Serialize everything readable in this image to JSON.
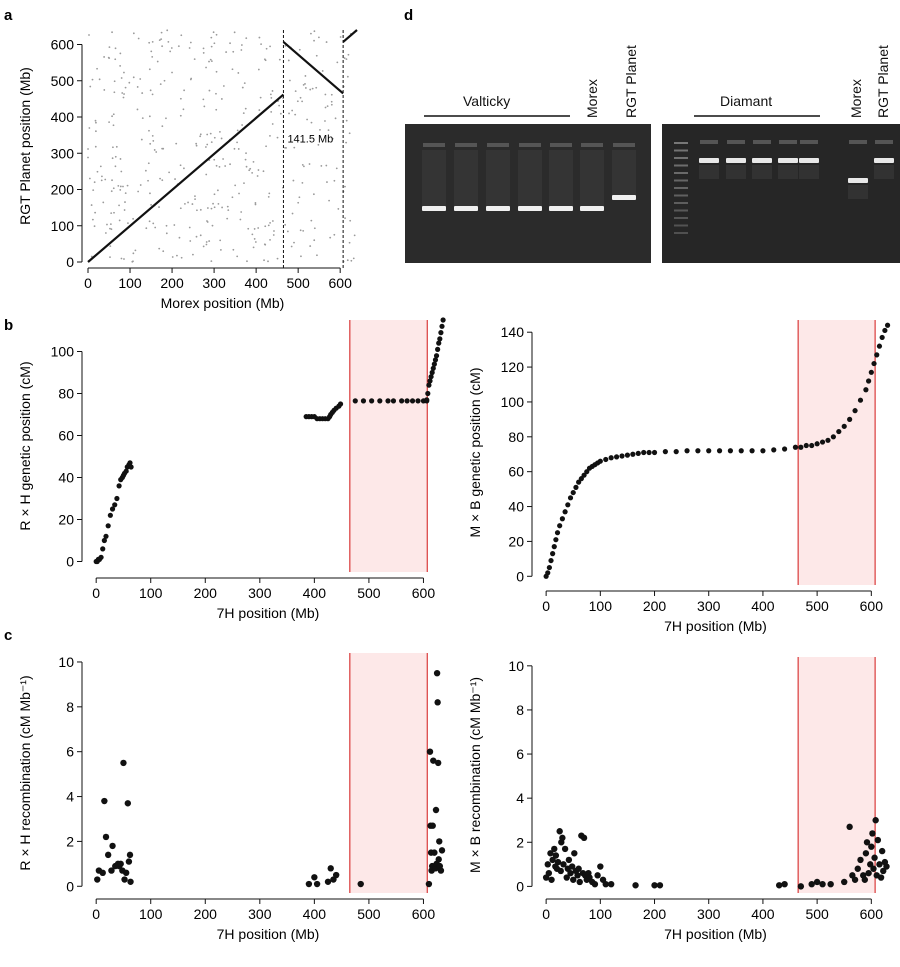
{
  "panel_letters": {
    "a": "a",
    "b": "b",
    "c": "c",
    "d": "d"
  },
  "colors": {
    "highlight_fill": "#fde8e8",
    "highlight_line": "#d93a3a",
    "points": "#111111",
    "dotplot_points": "#9a9a9a",
    "gel_bg": "#2a2a2a"
  },
  "chart_data": [
    {
      "id": "a",
      "type": "scatter",
      "xlabel": "Morex position (Mb)",
      "ylabel": "RGT Planet position (Mb)",
      "xlim": [
        0,
        640
      ],
      "ylim": [
        0,
        640
      ],
      "xticks": [
        0,
        100,
        200,
        300,
        400,
        500,
        600
      ],
      "yticks": [
        0,
        100,
        200,
        300,
        400,
        500,
        600
      ],
      "annotation": "141.5 Mb",
      "dashed_lines_x": [
        465,
        607
      ],
      "alignment_segments": [
        {
          "x": [
            0,
            465
          ],
          "y": [
            0,
            462
          ]
        },
        {
          "x": [
            465,
            607
          ],
          "y": [
            607,
            465
          ]
        },
        {
          "x": [
            607,
            640
          ],
          "y": [
            607,
            640
          ]
        }
      ],
      "noise_points_count": 420
    },
    {
      "id": "b-left",
      "type": "scatter",
      "xlabel": "7H position (Mb)",
      "ylabel": "R × H genetic position (cM)",
      "xlim": [
        -15,
        645
      ],
      "ylim": [
        -5,
        115
      ],
      "xticks": [
        0,
        100,
        200,
        300,
        400,
        500,
        600
      ],
      "yticks": [
        0,
        20,
        40,
        60,
        80,
        100
      ],
      "highlight_x": [
        465,
        607
      ],
      "series": [
        {
          "x": [
            0,
            2,
            4,
            6,
            9,
            12,
            15,
            18,
            22,
            26,
            30,
            34,
            38,
            42,
            45,
            48,
            50,
            52,
            55,
            57,
            60,
            62,
            64
          ],
          "y": [
            0,
            0,
            1,
            1,
            2,
            6,
            10,
            12,
            17,
            22,
            25,
            27,
            30,
            36,
            39,
            40,
            41,
            42,
            43,
            45,
            46,
            47,
            45
          ]
        },
        {
          "x": [
            385,
            390,
            395,
            400,
            405,
            410,
            415,
            420,
            425,
            428,
            430,
            433,
            436,
            440,
            445,
            448
          ],
          "y": [
            69,
            69,
            69,
            69,
            68,
            68,
            68,
            68,
            68,
            69,
            70,
            71,
            72,
            73,
            74,
            75
          ]
        },
        {
          "x": [
            475,
            490,
            505,
            520,
            535,
            545,
            560,
            570,
            580,
            590,
            600,
            606
          ],
          "y": [
            76.5,
            76.5,
            76.5,
            76.5,
            76.5,
            76.5,
            76.5,
            76.5,
            76.5,
            76.5,
            76.5,
            76.5
          ]
        },
        {
          "x": [
            606,
            608,
            610,
            612,
            614,
            616,
            618,
            620,
            622,
            624,
            626,
            628,
            630,
            632,
            634,
            636
          ],
          "y": [
            77,
            80,
            84,
            86,
            88,
            90,
            92,
            94,
            96,
            98,
            101,
            104,
            106,
            109,
            112,
            115
          ]
        }
      ]
    },
    {
      "id": "b-right",
      "type": "scatter",
      "xlabel": "7H position (Mb)",
      "ylabel": "M × B genetic position (cM)",
      "xlim": [
        -15,
        640
      ],
      "ylim": [
        -5,
        147
      ],
      "xticks": [
        0,
        100,
        200,
        300,
        400,
        500,
        600
      ],
      "yticks": [
        0,
        20,
        40,
        60,
        80,
        100,
        120,
        140
      ],
      "highlight_x": [
        465,
        607
      ],
      "series": [
        {
          "x": [
            0,
            3,
            6,
            9,
            12,
            15,
            18,
            21,
            25,
            30,
            35,
            40,
            45,
            50,
            55,
            60,
            65,
            70,
            75,
            80,
            85,
            90,
            95,
            100,
            110,
            120,
            130,
            140,
            150,
            160,
            170,
            180,
            190,
            200,
            220,
            240,
            260,
            280,
            300,
            320,
            340,
            360,
            380,
            400,
            420,
            440,
            460,
            470,
            480,
            490,
            500,
            510,
            520,
            530,
            540,
            550,
            560,
            570,
            580,
            590,
            595,
            600,
            605,
            610,
            615,
            620,
            625,
            630
          ],
          "y": [
            0,
            2,
            5,
            9,
            13,
            17,
            21,
            25,
            29,
            33,
            37,
            41,
            45,
            48,
            51,
            54,
            56,
            58,
            60,
            62,
            63,
            64,
            65,
            66,
            67,
            68,
            68.5,
            69,
            69.5,
            70,
            70.5,
            71,
            71,
            71,
            71.5,
            71.5,
            72,
            72,
            72,
            72,
            72,
            72,
            72,
            72,
            72.5,
            73,
            74,
            74,
            75,
            75,
            76,
            77,
            78,
            80,
            83,
            86,
            90,
            95,
            101,
            107,
            112,
            117,
            122,
            127,
            132,
            137,
            141,
            144
          ]
        }
      ]
    },
    {
      "id": "c-left",
      "type": "scatter",
      "xlabel": "7H position (Mb)",
      "ylabel": "R × H recombination (cM Mb⁻¹)",
      "xlim": [
        -15,
        645
      ],
      "ylim": [
        -0.3,
        10.4
      ],
      "xticks": [
        0,
        100,
        200,
        300,
        400,
        500,
        600
      ],
      "yticks": [
        0,
        2,
        4,
        6,
        8,
        10
      ],
      "highlight_x": [
        465,
        607
      ],
      "series": [
        {
          "x": [
            2,
            5,
            12,
            15,
            18,
            22,
            28,
            30,
            35,
            40,
            42,
            45,
            48,
            50,
            52,
            55,
            58,
            60,
            62,
            63,
            390,
            400,
            405,
            425,
            430,
            435,
            440,
            485,
            610,
            612,
            613,
            614,
            615,
            616,
            617,
            618,
            620,
            622,
            623,
            624,
            625,
            626,
            627,
            628,
            629,
            630,
            632,
            634
          ],
          "y": [
            0.3,
            0.7,
            0.6,
            3.8,
            2.2,
            1.4,
            0.7,
            1.8,
            0.9,
            1.0,
            0.9,
            1.0,
            0.7,
            5.5,
            0.3,
            0.6,
            3.7,
            1.1,
            1.4,
            0.2,
            0.1,
            0.4,
            0.1,
            0.2,
            0.8,
            0.3,
            0.5,
            0.1,
            0.1,
            6.0,
            2.7,
            1.5,
            0.7,
            0.9,
            2.7,
            5.6,
            1.5,
            0.8,
            3.4,
            1.0,
            9.5,
            8.2,
            5.5,
            1.2,
            2.0,
            0.9,
            0.7,
            1.6
          ]
        }
      ]
    },
    {
      "id": "c-right",
      "type": "scatter",
      "xlabel": "7H position (Mb)",
      "ylabel": "M × B recombination (cM Mb⁻¹)",
      "xlim": [
        -15,
        640
      ],
      "ylim": [
        -0.3,
        10.4
      ],
      "xticks": [
        0,
        100,
        200,
        300,
        400,
        500,
        600
      ],
      "yticks": [
        0,
        2,
        4,
        6,
        8,
        10
      ],
      "highlight_x": [
        465,
        607
      ],
      "series": [
        {
          "x": [
            0,
            3,
            5,
            8,
            10,
            12,
            15,
            17,
            18,
            20,
            22,
            25,
            27,
            28,
            30,
            32,
            35,
            38,
            40,
            42,
            45,
            48,
            50,
            52,
            55,
            58,
            60,
            62,
            65,
            68,
            70,
            72,
            75,
            78,
            80,
            85,
            90,
            95,
            100,
            105,
            110,
            120,
            165,
            200,
            210,
            430,
            440,
            470,
            490,
            500,
            510,
            525,
            550,
            560,
            565,
            570,
            575,
            580,
            585,
            588,
            590,
            592,
            595,
            598,
            600,
            602,
            604,
            606,
            608,
            610,
            612,
            615,
            618,
            620,
            622,
            625,
            628
          ],
          "y": [
            0.4,
            1.0,
            0.6,
            1.5,
            0.3,
            1.2,
            1.7,
            0.9,
            1.4,
            0.8,
            1.1,
            2.5,
            0.7,
            2.0,
            2.2,
            1.0,
            1.7,
            0.4,
            0.8,
            1.2,
            0.6,
            0.9,
            0.3,
            1.5,
            0.7,
            0.5,
            0.8,
            0.2,
            2.3,
            0.6,
            2.2,
            0.5,
            0.3,
            0.6,
            0.4,
            0.2,
            0.1,
            0.5,
            0.9,
            0.3,
            0.1,
            0.1,
            0.05,
            0.05,
            0.05,
            0.05,
            0.1,
            0.0,
            0.1,
            0.2,
            0.1,
            0.1,
            0.2,
            2.7,
            0.5,
            0.3,
            0.8,
            1.2,
            0.5,
            0.3,
            1.5,
            2.0,
            0.6,
            1.0,
            1.8,
            2.4,
            0.8,
            1.3,
            3.0,
            0.5,
            2.1,
            1.0,
            0.4,
            1.6,
            0.7,
            1.1,
            0.9
          ]
        }
      ]
    }
  ],
  "gel": {
    "left": {
      "group_label": "Valticky",
      "lane_labels": [
        "Morex",
        "RGT Planet"
      ],
      "band_levels": [
        "low",
        "low",
        "low",
        "low",
        "low",
        "low",
        "mid"
      ]
    },
    "right": {
      "group_label": "Diamant",
      "lane_labels": [
        "Morex",
        "RGT Planet"
      ],
      "band_levels": [
        "high",
        "high",
        "high",
        "high",
        "high",
        "low",
        "high"
      ]
    }
  }
}
